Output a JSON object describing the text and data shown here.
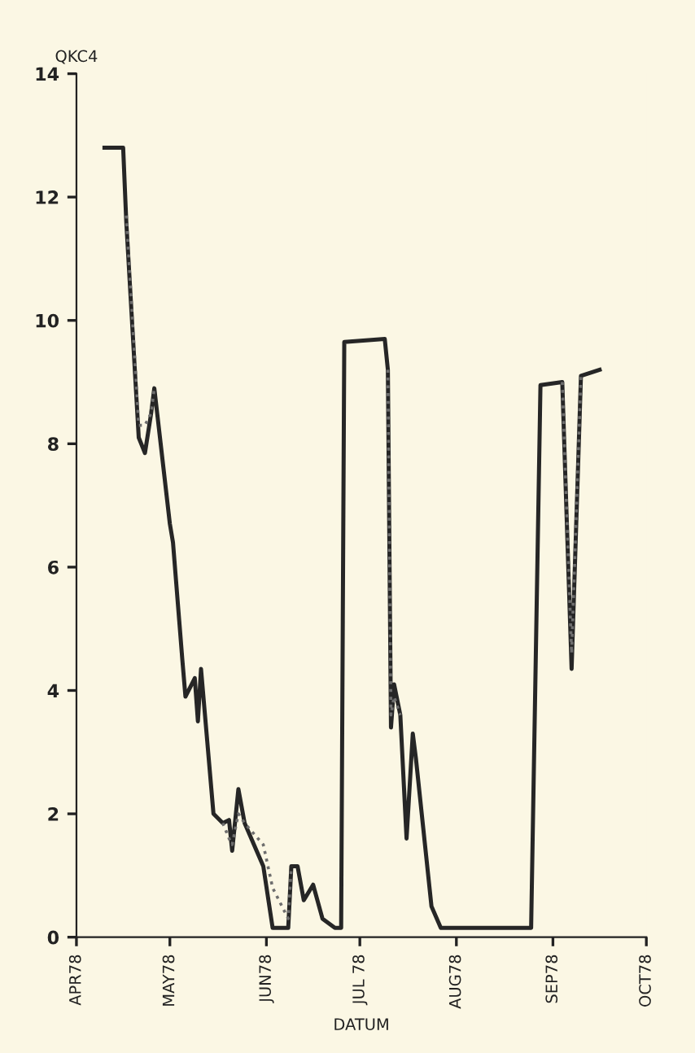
{
  "chart_data": {
    "type": "line",
    "xlabel": "DATUM",
    "ylabel": "QKC4",
    "x": [
      "1978-04-10",
      "1978-04-16",
      "1978-04-17",
      "1978-04-21",
      "1978-04-23",
      "1978-04-25",
      "1978-04-26",
      "1978-05-01",
      "1978-05-02",
      "1978-05-05",
      "1978-05-06",
      "1978-05-09",
      "1978-05-10",
      "1978-05-11",
      "1978-05-15",
      "1978-05-18",
      "1978-05-20",
      "1978-05-21",
      "1978-05-23",
      "1978-05-25",
      "1978-05-31",
      "1978-06-03",
      "1978-06-08",
      "1978-06-09",
      "1978-06-11",
      "1978-06-13",
      "1978-06-16",
      "1978-06-19",
      "1978-06-23",
      "1978-06-25",
      "1978-06-26",
      "1978-07-09",
      "1978-07-10",
      "1978-07-11",
      "1978-07-12",
      "1978-07-14",
      "1978-07-16",
      "1978-07-18",
      "1978-07-19",
      "1978-07-24",
      "1978-07-27",
      "1978-08-25",
      "1978-08-28",
      "1978-09-04",
      "1978-09-07",
      "1978-09-10",
      "1978-09-16"
    ],
    "series": [
      {
        "color": "#262626",
        "line_style": "solid",
        "values": [
          12.8,
          12.8,
          11.6,
          8.1,
          7.85,
          8.5,
          8.9,
          6.7,
          6.4,
          4.5,
          3.9,
          4.2,
          3.5,
          4.35,
          2.0,
          1.85,
          1.9,
          1.4,
          2.4,
          1.85,
          1.15,
          0.15,
          0.15,
          1.15,
          1.15,
          0.6,
          0.85,
          0.3,
          0.15,
          0.15,
          9.65,
          9.7,
          9.2,
          3.4,
          4.1,
          3.6,
          1.6,
          3.3,
          2.9,
          0.5,
          0.15,
          0.15,
          8.95,
          9.0,
          4.35,
          9.1,
          9.2
        ]
      },
      {
        "color": "#6e6e6e",
        "line_style": "dotted",
        "values": [
          null,
          null,
          11.7,
          8.3,
          8.3,
          8.5,
          8.9,
          null,
          null,
          null,
          null,
          null,
          null,
          null,
          null,
          1.85,
          1.6,
          1.5,
          2.0,
          1.85,
          1.5,
          0.8,
          0.3,
          1.15,
          null,
          null,
          null,
          null,
          null,
          null,
          null,
          null,
          9.2,
          3.6,
          3.9,
          3.6,
          null,
          null,
          null,
          null,
          null,
          null,
          null,
          9.0,
          4.6,
          9.1,
          null
        ]
      }
    ],
    "xlim": [
      "1978-04-01",
      "1978-10-01"
    ],
    "xticks": [
      {
        "value": "1978-04-01",
        "label": "APR78"
      },
      {
        "value": "1978-05-01",
        "label": "MAY78"
      },
      {
        "value": "1978-06-01",
        "label": "JUN78"
      },
      {
        "value": "1978-07-01",
        "label": "JUL 78"
      },
      {
        "value": "1978-08-01",
        "label": "AUG78"
      },
      {
        "value": "1978-09-01",
        "label": "SEP78"
      },
      {
        "value": "1978-10-01",
        "label": "OCT78"
      }
    ],
    "ylim": [
      0,
      14
    ],
    "yticks": [
      0,
      2,
      4,
      6,
      8,
      10,
      12,
      14
    ]
  }
}
